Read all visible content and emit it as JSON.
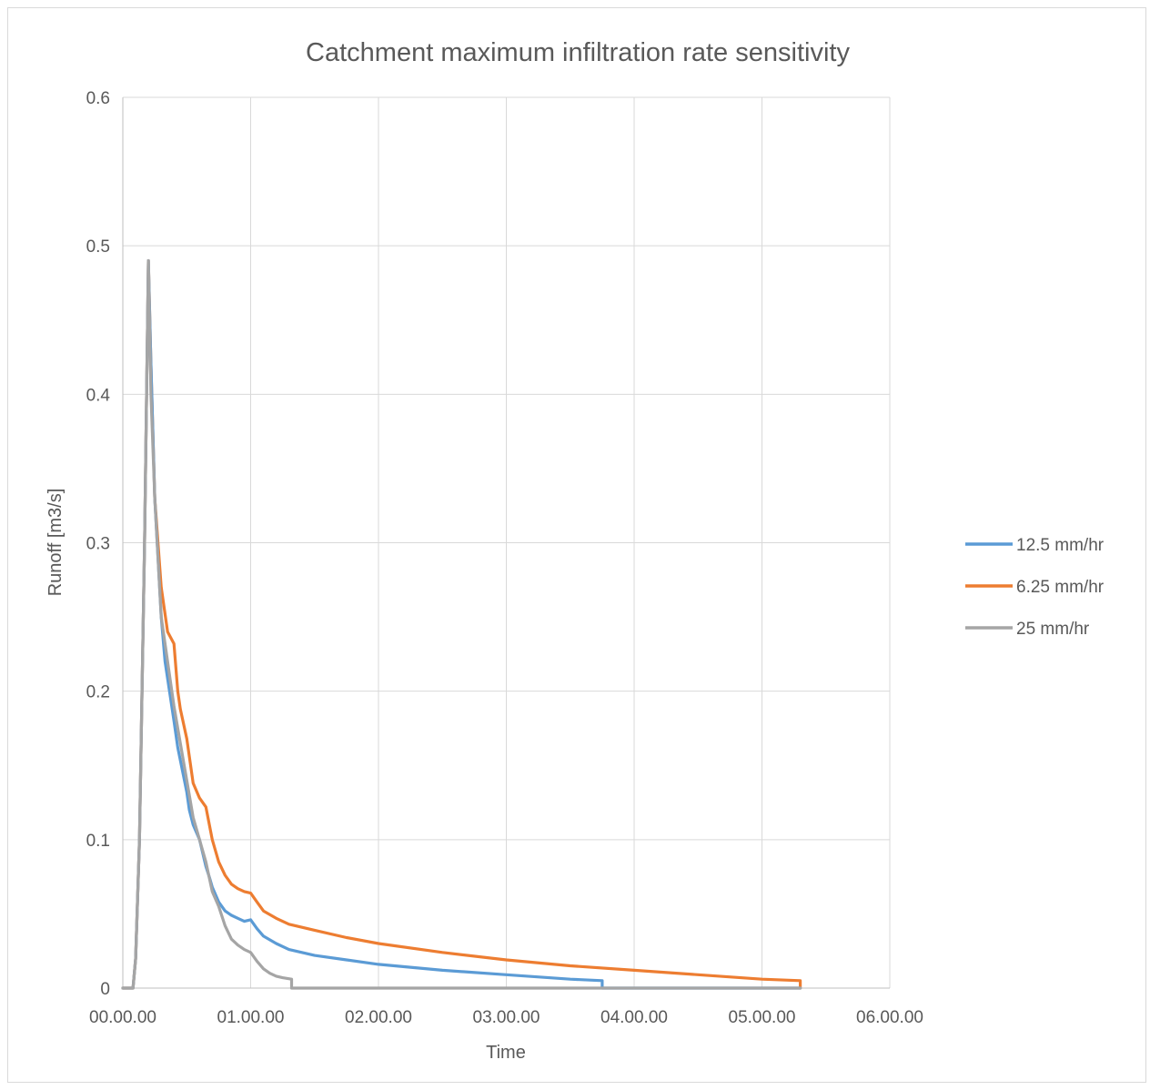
{
  "chart_data": {
    "type": "line",
    "title": "Catchment maximum infiltration rate sensitivity",
    "xlabel": "Time",
    "ylabel": "Runoff [m3/s]",
    "x_unit": "hours",
    "xlim": [
      0,
      6
    ],
    "ylim": [
      0,
      0.6
    ],
    "x_ticks": [
      {
        "value": 0,
        "label": "00.00.00"
      },
      {
        "value": 1,
        "label": "01.00.00"
      },
      {
        "value": 2,
        "label": "02.00.00"
      },
      {
        "value": 3,
        "label": "03.00.00"
      },
      {
        "value": 4,
        "label": "04.00.00"
      },
      {
        "value": 5,
        "label": "05.00.00"
      },
      {
        "value": 6,
        "label": "06.00.00"
      }
    ],
    "y_ticks": [
      {
        "value": 0,
        "label": "0"
      },
      {
        "value": 0.1,
        "label": "0.1"
      },
      {
        "value": 0.2,
        "label": "0.2"
      },
      {
        "value": 0.3,
        "label": "0.3"
      },
      {
        "value": 0.4,
        "label": "0.4"
      },
      {
        "value": 0.5,
        "label": "0.5"
      },
      {
        "value": 0.6,
        "label": "0.6"
      }
    ],
    "grid": true,
    "legend_position": "right",
    "series": [
      {
        "name": "12.5 mm/hr",
        "color": "#5b9bd5",
        "x": [
          0,
          0.08,
          0.1,
          0.13,
          0.17,
          0.2,
          0.22,
          0.25,
          0.3,
          0.33,
          0.4,
          0.43,
          0.5,
          0.52,
          0.55,
          0.6,
          0.65,
          0.68,
          0.7,
          0.75,
          0.8,
          0.85,
          0.9,
          0.95,
          1.0,
          1.05,
          1.1,
          1.2,
          1.3,
          1.4,
          1.5,
          1.75,
          2.0,
          2.5,
          3.0,
          3.5,
          3.75,
          3.75,
          5.3
        ],
        "y": [
          0,
          0,
          0.02,
          0.1,
          0.3,
          0.49,
          0.42,
          0.33,
          0.25,
          0.22,
          0.18,
          0.162,
          0.132,
          0.12,
          0.11,
          0.1,
          0.082,
          0.074,
          0.068,
          0.058,
          0.052,
          0.049,
          0.047,
          0.045,
          0.046,
          0.04,
          0.035,
          0.03,
          0.026,
          0.024,
          0.022,
          0.019,
          0.016,
          0.012,
          0.009,
          0.006,
          0.005,
          0,
          0
        ]
      },
      {
        "name": "6.25 mm/hr",
        "color": "#ed7d31",
        "x": [
          0,
          0.08,
          0.1,
          0.13,
          0.17,
          0.2,
          0.22,
          0.25,
          0.3,
          0.35,
          0.4,
          0.43,
          0.45,
          0.5,
          0.55,
          0.6,
          0.65,
          0.7,
          0.75,
          0.8,
          0.85,
          0.9,
          0.95,
          1.0,
          1.05,
          1.1,
          1.2,
          1.3,
          1.5,
          1.75,
          2.0,
          2.5,
          3.0,
          3.5,
          4.0,
          4.5,
          5.0,
          5.3,
          5.3
        ],
        "y": [
          0,
          0,
          0.02,
          0.1,
          0.3,
          0.49,
          0.42,
          0.33,
          0.27,
          0.24,
          0.232,
          0.2,
          0.188,
          0.168,
          0.138,
          0.128,
          0.122,
          0.1,
          0.085,
          0.076,
          0.07,
          0.067,
          0.065,
          0.064,
          0.058,
          0.052,
          0.047,
          0.043,
          0.039,
          0.034,
          0.03,
          0.024,
          0.019,
          0.015,
          0.012,
          0.009,
          0.006,
          0.005,
          0
        ]
      },
      {
        "name": "25 mm/hr",
        "color": "#a5a5a5",
        "x": [
          0,
          0.08,
          0.1,
          0.13,
          0.17,
          0.2,
          0.22,
          0.25,
          0.3,
          0.35,
          0.4,
          0.45,
          0.5,
          0.55,
          0.6,
          0.65,
          0.7,
          0.75,
          0.8,
          0.85,
          0.9,
          0.95,
          1.0,
          1.05,
          1.1,
          1.15,
          1.2,
          1.25,
          1.32,
          1.32,
          5.3
        ],
        "y": [
          0,
          0,
          0.02,
          0.1,
          0.3,
          0.49,
          0.4,
          0.33,
          0.25,
          0.22,
          0.19,
          0.165,
          0.14,
          0.115,
          0.1,
          0.085,
          0.065,
          0.055,
          0.042,
          0.033,
          0.029,
          0.026,
          0.024,
          0.018,
          0.013,
          0.01,
          0.008,
          0.007,
          0.006,
          0,
          0
        ]
      }
    ]
  }
}
